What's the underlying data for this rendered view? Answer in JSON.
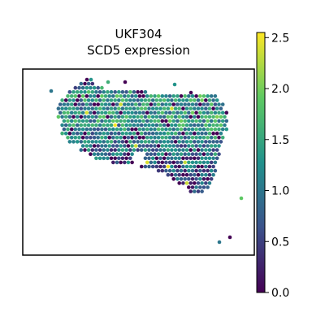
{
  "chart_data": {
    "type": "scatter",
    "subtype": "spatial spot map (hexagonal grid), colored by expression",
    "title": [
      "UKF304",
      "SCD5 expression"
    ],
    "xlabel": "",
    "ylabel": "",
    "axes_ticks_visible": false,
    "grid": false,
    "colorbar": {
      "colormap": "viridis",
      "colors": [
        "#440154",
        "#3b528b",
        "#21918c",
        "#5ec962",
        "#fde725"
      ],
      "range": [
        0.0,
        2.55
      ],
      "ticks": [
        0.0,
        0.5,
        1.0,
        1.5,
        2.0,
        2.5
      ],
      "tick_labels": [
        "0.0",
        "0.5",
        "1.0",
        "1.5",
        "2.0",
        "2.5"
      ],
      "placement": "right"
    },
    "value_summary": {
      "min": 0.0,
      "max": 2.55,
      "typical": 1.2,
      "note": "most spots between ~0.8 and ~1.8; scattered 0.0 spots; a few near 2.5"
    },
    "tissue_outline_rows": [
      {
        "row": 0,
        "cols": [
          12,
          15
        ],
        "vals": [
          0.6,
          0.2
        ]
      },
      {
        "row": 1,
        "cols": [
          10,
          17
        ],
        "vals": [
          1.0,
          1.1
        ]
      },
      {
        "row": 2,
        "cols": [
          9,
          29
        ],
        "vals": [
          1.2,
          1.3
        ]
      },
      {
        "row": 3,
        "cols": [
          8,
          47
        ],
        "vals": [
          1.3,
          1.4
        ]
      },
      {
        "row": 4,
        "cols": [
          7,
          48
        ],
        "vals": [
          1.2,
          1.4
        ]
      },
      {
        "row": 5,
        "cols": [
          6,
          49
        ],
        "vals": [
          1.1,
          1.3
        ]
      },
      {
        "row": 6,
        "cols": [
          6,
          49
        ],
        "vals": [
          1.2,
          1.4
        ]
      },
      {
        "row": 7,
        "cols": [
          6,
          50
        ],
        "vals": [
          1.2,
          1.5
        ]
      },
      {
        "row": 8,
        "cols": [
          6,
          50
        ],
        "vals": [
          1.3,
          1.5
        ]
      },
      {
        "row": 9,
        "cols": [
          7,
          50
        ],
        "vals": [
          1.3,
          1.4
        ]
      },
      {
        "row": 10,
        "cols": [
          7,
          50
        ],
        "vals": [
          1.2,
          1.4
        ]
      },
      {
        "row": 11,
        "cols": [
          7,
          50
        ],
        "vals": [
          1.2,
          1.3
        ]
      },
      {
        "row": 12,
        "cols": [
          7,
          49
        ],
        "vals": [
          1.1,
          1.3
        ]
      },
      {
        "row": 13,
        "cols": [
          8,
          49
        ],
        "vals": [
          1.1,
          1.2
        ]
      },
      {
        "row": 14,
        "cols": [
          9,
          49
        ],
        "vals": [
          1.0,
          1.2
        ]
      },
      {
        "row": 15,
        "cols": [
          11,
          48
        ],
        "vals": [
          0.9,
          1.1
        ]
      },
      {
        "row": 16,
        "cols": [
          12,
          48
        ],
        "vals": [
          0.9,
          1.0
        ]
      },
      {
        "row": 17,
        "cols": [
          14,
          48
        ],
        "vals": [
          0.8,
          1.0
        ]
      },
      {
        "row": 18,
        "cols": [
          16,
          48
        ],
        "vals": [
          0.8,
          0.9
        ]
      },
      {
        "row": 19,
        "cols": [
          20,
          47
        ],
        "vals": [
          0.7,
          0.9
        ]
      },
      {
        "row": 20,
        "cols": [
          28,
          47
        ],
        "vals": [
          0.7,
          0.8
        ]
      },
      {
        "row": 21,
        "cols": [
          32,
          47
        ],
        "vals": [
          0.6,
          0.8
        ]
      },
      {
        "row": 22,
        "cols": [
          35,
          47
        ],
        "vals": [
          0.6,
          0.7
        ]
      },
      {
        "row": 23,
        "cols": [
          36,
          46
        ],
        "vals": [
          0.5,
          0.7
        ]
      },
      {
        "row": 24,
        "cols": [
          38,
          46
        ],
        "vals": [
          0.5,
          0.6
        ]
      },
      {
        "row": 25,
        "cols": [
          40,
          45
        ],
        "vals": [
          0.4,
          0.6
        ]
      },
      {
        "row": 26,
        "cols": [
          41,
          44
        ],
        "vals": [
          0.4,
          0.5
        ]
      }
    ]
  }
}
